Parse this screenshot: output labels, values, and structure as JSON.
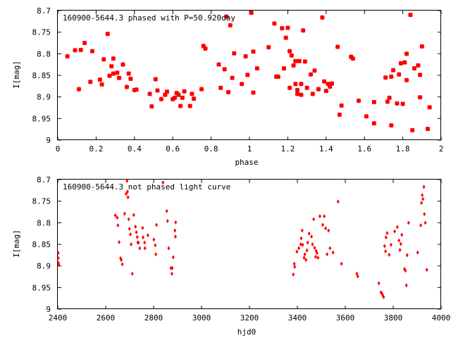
{
  "chart_data": [
    {
      "type": "scatter",
      "title": "160900-5644.3 phased with P=50.920day",
      "xlabel": "phase",
      "ylabel": "I[mag]",
      "xlim": [
        0,
        2
      ],
      "ylim": [
        9,
        8.7
      ],
      "y_inverted": true,
      "xticks": [
        "0",
        "0.2",
        "0.4",
        "0.6",
        "0.8",
        "1",
        "1.2",
        "1.4",
        "1.6",
        "1.8",
        "2"
      ],
      "yticks": [
        "8.7",
        "8.75",
        "8.8",
        "8.85",
        "8.9",
        "8.95",
        "9"
      ],
      "grid": false,
      "marker_color": "#ff0000",
      "points": [
        [
          0.05,
          8.806
        ],
        [
          0.09,
          8.792
        ],
        [
          0.11,
          8.882
        ],
        [
          0.12,
          8.791
        ],
        [
          0.14,
          8.775
        ],
        [
          0.17,
          8.865
        ],
        [
          0.18,
          8.794
        ],
        [
          0.22,
          8.86
        ],
        [
          0.23,
          8.871
        ],
        [
          0.24,
          8.813
        ],
        [
          0.26,
          8.754
        ],
        [
          0.27,
          8.851
        ],
        [
          0.28,
          8.829
        ],
        [
          0.29,
          8.846
        ],
        [
          0.29,
          8.811
        ],
        [
          0.31,
          8.844
        ],
        [
          0.32,
          8.856
        ],
        [
          0.34,
          8.825
        ],
        [
          0.36,
          8.877
        ],
        [
          0.37,
          8.846
        ],
        [
          0.38,
          8.858
        ],
        [
          0.4,
          8.884
        ],
        [
          0.41,
          8.883
        ],
        [
          0.48,
          8.893
        ],
        [
          0.49,
          8.922
        ],
        [
          0.51,
          8.859
        ],
        [
          0.52,
          8.885
        ],
        [
          0.54,
          8.905
        ],
        [
          0.56,
          8.895
        ],
        [
          0.57,
          8.888
        ],
        [
          0.6,
          8.905
        ],
        [
          0.61,
          8.902
        ],
        [
          0.62,
          8.891
        ],
        [
          0.63,
          8.895
        ],
        [
          0.64,
          8.921
        ],
        [
          0.65,
          8.902
        ],
        [
          0.66,
          8.887
        ],
        [
          0.69,
          8.921
        ],
        [
          0.7,
          8.893
        ],
        [
          0.71,
          8.904
        ],
        [
          0.75,
          8.882
        ],
        [
          0.76,
          8.782
        ],
        [
          0.77,
          8.788
        ],
        [
          0.84,
          8.825
        ],
        [
          0.85,
          8.879
        ],
        [
          0.87,
          8.836
        ],
        [
          0.88,
          8.714
        ],
        [
          0.89,
          8.889
        ],
        [
          0.9,
          8.734
        ],
        [
          0.91,
          8.856
        ],
        [
          0.92,
          8.799
        ],
        [
          0.96,
          8.87
        ],
        [
          0.98,
          8.806
        ],
        [
          0.99,
          8.849
        ],
        [
          1.01,
          8.705
        ],
        [
          1.02,
          8.89
        ],
        [
          1.02,
          8.795
        ],
        [
          1.04,
          8.834
        ],
        [
          1.1,
          8.785
        ],
        [
          1.13,
          8.73
        ],
        [
          1.14,
          8.853
        ],
        [
          1.15,
          8.853
        ],
        [
          1.17,
          8.741
        ],
        [
          1.18,
          8.834
        ],
        [
          1.19,
          8.763
        ],
        [
          1.2,
          8.74
        ],
        [
          1.21,
          8.794
        ],
        [
          1.21,
          8.879
        ],
        [
          1.22,
          8.804
        ],
        [
          1.23,
          8.827
        ],
        [
          1.24,
          8.87
        ],
        [
          1.24,
          8.817
        ],
        [
          1.25,
          8.884
        ],
        [
          1.25,
          8.893
        ],
        [
          1.26,
          8.817
        ],
        [
          1.27,
          8.895
        ],
        [
          1.27,
          8.87
        ],
        [
          1.28,
          8.746
        ],
        [
          1.29,
          8.818
        ],
        [
          1.3,
          8.879
        ],
        [
          1.32,
          8.848
        ],
        [
          1.33,
          8.893
        ],
        [
          1.34,
          8.839
        ],
        [
          1.36,
          8.882
        ],
        [
          1.38,
          8.716
        ],
        [
          1.39,
          8.864
        ],
        [
          1.4,
          8.886
        ],
        [
          1.41,
          8.87
        ],
        [
          1.42,
          8.876
        ],
        [
          1.43,
          8.869
        ],
        [
          1.46,
          8.784
        ],
        [
          1.47,
          8.941
        ],
        [
          1.48,
          8.92
        ],
        [
          1.53,
          8.807
        ],
        [
          1.54,
          8.811
        ],
        [
          1.57,
          8.909
        ],
        [
          1.61,
          8.945
        ],
        [
          1.65,
          8.912
        ],
        [
          1.65,
          8.961
        ],
        [
          1.71,
          8.855
        ],
        [
          1.72,
          8.911
        ],
        [
          1.73,
          8.902
        ],
        [
          1.74,
          8.966
        ],
        [
          1.74,
          8.853
        ],
        [
          1.75,
          8.838
        ],
        [
          1.77,
          8.915
        ],
        [
          1.78,
          8.848
        ],
        [
          1.79,
          8.822
        ],
        [
          1.8,
          8.916
        ],
        [
          1.81,
          8.82
        ],
        [
          1.82,
          8.8
        ],
        [
          1.82,
          8.861
        ],
        [
          1.84,
          8.71
        ],
        [
          1.85,
          8.977
        ],
        [
          1.86,
          8.834
        ],
        [
          1.88,
          8.827
        ],
        [
          1.89,
          8.901
        ],
        [
          1.89,
          8.849
        ],
        [
          1.9,
          8.783
        ],
        [
          1.93,
          8.974
        ],
        [
          1.94,
          8.924
        ]
      ]
    },
    {
      "type": "scatter",
      "title": "160900-5644.3 not phased light curve",
      "xlabel": "hjd0",
      "ylabel": "I[mag]",
      "xlim": [
        2400,
        4000
      ],
      "ylim": [
        9,
        8.7
      ],
      "y_inverted": true,
      "xticks": [
        "2400",
        "2600",
        "2800",
        "3000",
        "3200",
        "3400",
        "3600",
        "3800",
        "4000"
      ],
      "yticks": [
        "8.7",
        "8.75",
        "8.8",
        "8.85",
        "8.9",
        "8.95",
        "9"
      ],
      "grid": false,
      "marker_color": "#ff0000",
      "points": [
        [
          2402,
          8.87
        ],
        [
          2402,
          8.882
        ],
        [
          2403,
          8.893
        ],
        [
          2404,
          8.897
        ],
        [
          2640,
          8.783
        ],
        [
          2648,
          8.788
        ],
        [
          2651,
          8.806
        ],
        [
          2656,
          8.845
        ],
        [
          2662,
          8.882
        ],
        [
          2665,
          8.886
        ],
        [
          2669,
          8.896
        ],
        [
          2679,
          8.779
        ],
        [
          2685,
          8.733
        ],
        [
          2689,
          8.703
        ],
        [
          2691,
          8.728
        ],
        [
          2693,
          8.741
        ],
        [
          2696,
          8.792
        ],
        [
          2699,
          8.814
        ],
        [
          2703,
          8.827
        ],
        [
          2706,
          8.85
        ],
        [
          2711,
          8.918
        ],
        [
          2717,
          8.782
        ],
        [
          2724,
          8.809
        ],
        [
          2728,
          8.822
        ],
        [
          2732,
          8.833
        ],
        [
          2734,
          8.846
        ],
        [
          2737,
          8.846
        ],
        [
          2742,
          8.859
        ],
        [
          2754,
          8.812
        ],
        [
          2756,
          8.834
        ],
        [
          2762,
          8.846
        ],
        [
          2764,
          8.859
        ],
        [
          2776,
          8.829
        ],
        [
          2801,
          8.839
        ],
        [
          2807,
          8.852
        ],
        [
          2809,
          8.873
        ],
        [
          2812,
          8.805
        ],
        [
          2839,
          8.707
        ],
        [
          2855,
          8.773
        ],
        [
          2858,
          8.796
        ],
        [
          2863,
          8.859
        ],
        [
          2872,
          8.905
        ],
        [
          2876,
          8.918
        ],
        [
          2878,
          8.905
        ],
        [
          2882,
          8.88
        ],
        [
          2889,
          8.818
        ],
        [
          2891,
          8.832
        ],
        [
          2892,
          8.799
        ],
        [
          3383,
          8.92
        ],
        [
          3387,
          8.895
        ],
        [
          3389,
          8.902
        ],
        [
          3398,
          8.867
        ],
        [
          3406,
          8.859
        ],
        [
          3414,
          8.85
        ],
        [
          3416,
          8.836
        ],
        [
          3420,
          8.818
        ],
        [
          3422,
          8.851
        ],
        [
          3428,
          8.881
        ],
        [
          3431,
          8.873
        ],
        [
          3436,
          8.886
        ],
        [
          3440,
          8.864
        ],
        [
          3443,
          8.846
        ],
        [
          3449,
          8.825
        ],
        [
          3459,
          8.832
        ],
        [
          3463,
          8.85
        ],
        [
          3468,
          8.792
        ],
        [
          3472,
          8.858
        ],
        [
          3476,
          8.879
        ],
        [
          3478,
          8.865
        ],
        [
          3482,
          8.87
        ],
        [
          3486,
          8.881
        ],
        [
          3494,
          8.785
        ],
        [
          3506,
          8.805
        ],
        [
          3512,
          8.785
        ],
        [
          3518,
          8.813
        ],
        [
          3524,
          8.873
        ],
        [
          3530,
          8.818
        ],
        [
          3536,
          8.859
        ],
        [
          3549,
          8.869
        ],
        [
          3570,
          8.751
        ],
        [
          3584,
          8.895
        ],
        [
          3648,
          8.918
        ],
        [
          3652,
          8.924
        ],
        [
          3740,
          8.94
        ],
        [
          3749,
          8.961
        ],
        [
          3753,
          8.964
        ],
        [
          3757,
          8.969
        ],
        [
          3760,
          8.972
        ],
        [
          3764,
          8.854
        ],
        [
          3768,
          8.866
        ],
        [
          3770,
          8.834
        ],
        [
          3775,
          8.824
        ],
        [
          3783,
          8.874
        ],
        [
          3791,
          8.851
        ],
        [
          3806,
          8.82
        ],
        [
          3817,
          8.81
        ],
        [
          3824,
          8.841
        ],
        [
          3828,
          8.863
        ],
        [
          3832,
          8.849
        ],
        [
          3836,
          8.828
        ],
        [
          3847,
          8.907
        ],
        [
          3851,
          8.911
        ],
        [
          3855,
          8.945
        ],
        [
          3858,
          8.875
        ],
        [
          3864,
          8.8
        ],
        [
          3902,
          8.869
        ],
        [
          3915,
          8.806
        ],
        [
          3918,
          8.754
        ],
        [
          3921,
          8.736
        ],
        [
          3924,
          8.745
        ],
        [
          3928,
          8.717
        ],
        [
          3930,
          8.78
        ],
        [
          3934,
          8.8
        ],
        [
          3940,
          8.909
        ]
      ]
    }
  ]
}
